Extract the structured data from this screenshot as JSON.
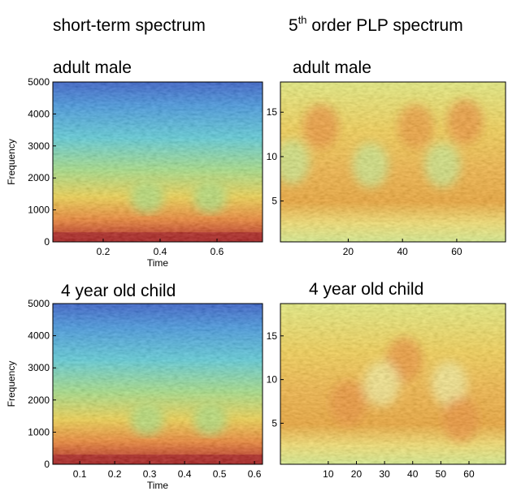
{
  "column_titles": {
    "left": "short-term spectrum",
    "right_number": "5",
    "right_superscript": "th",
    "right_rest": " order PLP spectrum"
  },
  "chart_data": [
    {
      "type": "heatmap",
      "title": "adult male",
      "xlabel": "Time",
      "ylabel": "Frequency",
      "xlim": [
        0.023,
        0.76
      ],
      "ylim": [
        0,
        5000
      ],
      "xticks": [
        0.2,
        0.4,
        0.6
      ],
      "yticks": [
        0,
        1000,
        2000,
        3000,
        4000,
        5000
      ],
      "palette": "spectrogram"
    },
    {
      "type": "heatmap",
      "title": "adult male",
      "xlim": [
        -5,
        78
      ],
      "ylim": [
        0.4,
        18.4
      ],
      "xticks": [
        20,
        40,
        60
      ],
      "yticks": [
        5,
        10,
        15
      ],
      "palette": "plp"
    },
    {
      "type": "heatmap",
      "title": "4 year old child",
      "xlabel": "Time",
      "ylabel": "Frequency",
      "xlim": [
        0.023,
        0.623
      ],
      "ylim": [
        0,
        5000
      ],
      "xticks": [
        0.1,
        0.2,
        0.3,
        0.4,
        0.5,
        0.6
      ],
      "yticks": [
        0,
        1000,
        2000,
        3000,
        4000,
        5000
      ],
      "palette": "spectrogram"
    },
    {
      "type": "heatmap",
      "title": "4 year old child",
      "xlim": [
        -7,
        73
      ],
      "ylim": [
        0.3,
        18.7
      ],
      "xticks": [
        10,
        20,
        30,
        40,
        50,
        60
      ],
      "yticks": [
        5,
        10,
        15
      ],
      "palette": "plp"
    }
  ]
}
